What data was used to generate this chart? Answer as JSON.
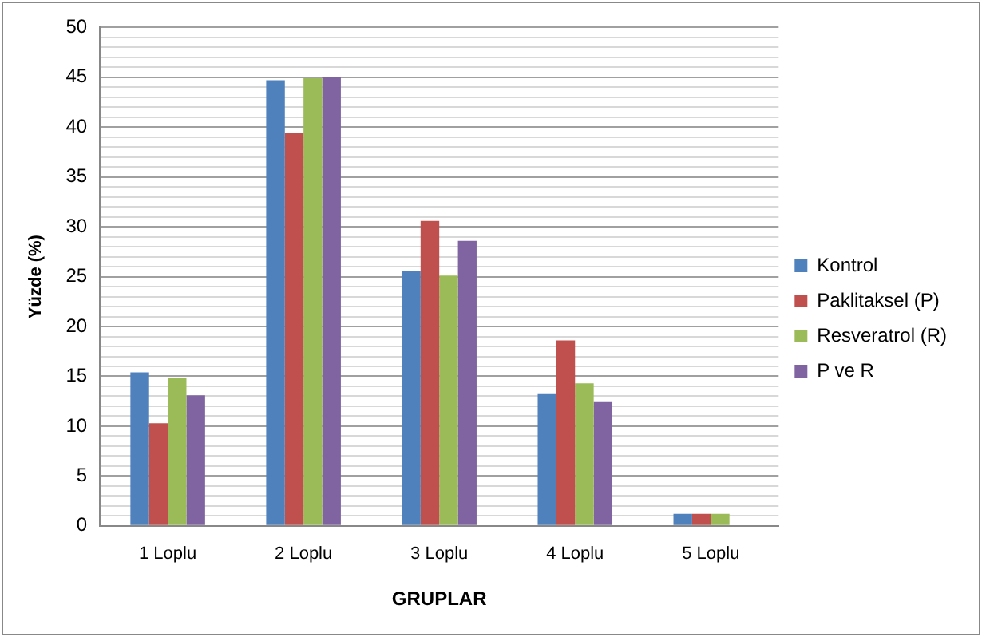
{
  "chart_data": {
    "type": "bar",
    "xlabel": "GRUPLAR",
    "ylabel": "Yüzde (%)",
    "categories": [
      "1 Loplu",
      "2 Loplu",
      "3 Loplu",
      "4 Loplu",
      "5 Loplu"
    ],
    "series": [
      {
        "name": "Kontrol",
        "color": "#4f81bd",
        "values": [
          15.4,
          44.7,
          25.6,
          13.3,
          1.2
        ]
      },
      {
        "name": "Paklitaksel (P)",
        "color": "#c0504d",
        "values": [
          10.3,
          39.4,
          30.6,
          18.6,
          1.2
        ]
      },
      {
        "name": "Resveratrol (R)",
        "color": "#9bbb59",
        "values": [
          14.8,
          44.9,
          25.1,
          14.3,
          1.2
        ]
      },
      {
        "name": "P ve R",
        "color": "#8064a2",
        "values": [
          13.1,
          45.0,
          28.6,
          12.5,
          null
        ]
      }
    ],
    "ylim": [
      0,
      50
    ],
    "yticks": [
      0,
      {
        "value": 1,
        "label": null
      },
      {
        "value": 2,
        "label": null
      },
      {
        "value": 3,
        "label": null
      },
      {
        "value": 4,
        "label": null
      },
      5,
      {
        "value": 6,
        "label": null
      },
      {
        "value": 7,
        "label": null
      },
      {
        "value": 8,
        "label": null
      },
      {
        "value": 9,
        "label": null
      },
      10,
      {
        "value": 11,
        "label": null
      },
      {
        "value": 12,
        "label": null
      },
      {
        "value": 13,
        "label": null
      },
      {
        "value": 14,
        "label": null
      },
      15,
      {
        "value": 16,
        "label": null
      },
      {
        "value": 17,
        "label": null
      },
      {
        "value": 18,
        "label": null
      },
      {
        "value": 19,
        "label": null
      },
      20,
      {
        "value": 21,
        "label": null
      },
      {
        "value": 22,
        "label": null
      },
      {
        "value": 23,
        "label": null
      },
      {
        "value": 24,
        "label": null
      },
      25,
      {
        "value": 26,
        "label": null
      },
      {
        "value": 27,
        "label": null
      },
      {
        "value": 28,
        "label": null
      },
      {
        "value": 29,
        "label": null
      },
      30,
      {
        "value": 31,
        "label": null
      },
      {
        "value": 32,
        "label": null
      },
      {
        "value": 33,
        "label": null
      },
      {
        "value": 34,
        "label": null
      },
      35,
      {
        "value": 36,
        "label": null
      },
      {
        "value": 37,
        "label": null
      },
      {
        "value": 38,
        "label": null
      },
      {
        "value": 39,
        "label": null
      },
      40,
      {
        "value": 41,
        "label": null
      },
      {
        "value": 42,
        "label": null
      },
      {
        "value": 43,
        "label": null
      },
      {
        "value": 44,
        "label": null
      },
      45,
      {
        "value": 46,
        "label": null
      },
      {
        "value": 47,
        "label": null
      },
      {
        "value": 48,
        "label": null
      },
      {
        "value": 49,
        "label": null
      },
      50
    ],
    "grid": "y",
    "legend": "right"
  }
}
